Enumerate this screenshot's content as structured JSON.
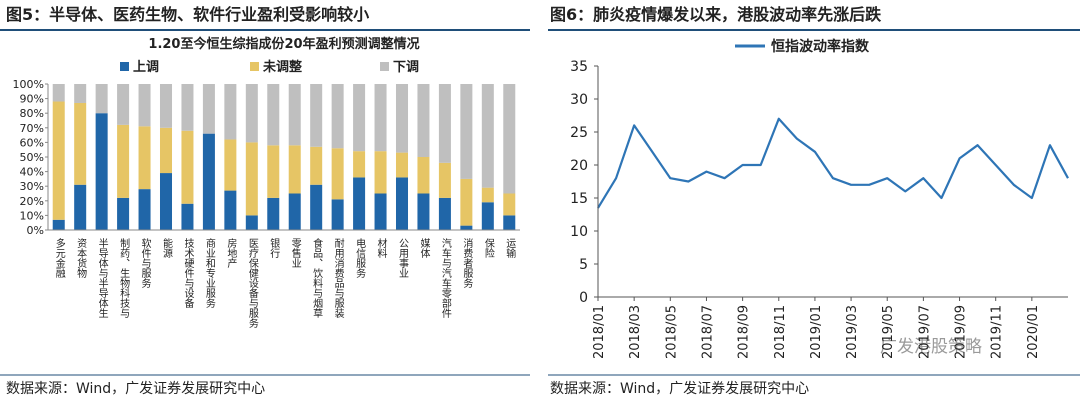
{
  "panels": [
    {
      "heading": "图5：半导体、医药生物、软件行业盈利受影响较小",
      "source": "数据来源：Wind，广发证券发展研究中心"
    },
    {
      "heading": "图6：肺炎疫情爆发以来，港股波动率先涨后跌",
      "source": "数据来源：Wind，广发证券发展研究中心"
    }
  ],
  "watermark": "广发港股策略",
  "chart_data": [
    {
      "type": "bar",
      "stacked": true,
      "title": "1.20至今恒生综指成份20年盈利预测调整情况",
      "categories": [
        "多元金融",
        "资本货物",
        "半导体与半导体生",
        "制药、生物科技与",
        "软件与服务",
        "能源",
        "技术硬件与设备",
        "商业和专业服务",
        "房地产",
        "医疗保健设备与服务",
        "银行",
        "零售业",
        "食品、饮料与烟草",
        "耐用消费品与服装",
        "电信服务",
        "材料",
        "公用事业",
        "媒体",
        "汽车与汽车零部件",
        "消费者服务",
        "保险",
        "运输"
      ],
      "series": [
        {
          "name": "上调",
          "color": "#2066a8",
          "values": [
            7,
            31,
            80,
            22,
            28,
            39,
            18,
            66,
            27,
            10,
            22,
            25,
            31,
            21,
            36,
            25,
            36,
            25,
            22,
            3,
            19,
            10
          ]
        },
        {
          "name": "未调整",
          "color": "#e6c565",
          "values": [
            81,
            56,
            0,
            50,
            43,
            31,
            50,
            0,
            35,
            50,
            36,
            33,
            26,
            35,
            18,
            29,
            17,
            25,
            24,
            32,
            10,
            15
          ]
        },
        {
          "name": "下调",
          "color": "#bfbfbf",
          "values": [
            12,
            13,
            20,
            28,
            29,
            30,
            32,
            34,
            38,
            40,
            42,
            42,
            43,
            44,
            46,
            46,
            47,
            50,
            54,
            65,
            71,
            75
          ]
        }
      ],
      "ylim": [
        0,
        100
      ],
      "yticks": [
        {
          "value": 0,
          "label": "0%"
        },
        {
          "value": 10,
          "label": "10%"
        },
        {
          "value": 20,
          "label": "20%"
        },
        {
          "value": 30,
          "label": "30%"
        },
        {
          "value": 40,
          "label": "40%"
        },
        {
          "value": 50,
          "label": "50%"
        },
        {
          "value": 60,
          "label": "60%"
        },
        {
          "value": 70,
          "label": "70%"
        },
        {
          "value": 80,
          "label": "80%"
        },
        {
          "value": 90,
          "label": "90%"
        },
        {
          "value": 100,
          "label": "100%"
        }
      ]
    },
    {
      "type": "line",
      "x": [
        "2018/01",
        null,
        "2018/03",
        null,
        "2018/05",
        null,
        "2018/07",
        null,
        "2018/09",
        null,
        "2018/11",
        null,
        "2019/01",
        null,
        "2019/03",
        null,
        "2019/05",
        null,
        "2019/07",
        null,
        "2019/09",
        null,
        "2019/11",
        null,
        "2020/01",
        null,
        null
      ],
      "series": [
        {
          "name": "恒指波动率指数",
          "color": "#2e75b6",
          "values": [
            13.5,
            18,
            26,
            22,
            18,
            17.5,
            19,
            18,
            20,
            20,
            27,
            24,
            22,
            18,
            17,
            17,
            18,
            16,
            18,
            15,
            21,
            23,
            20,
            17,
            15,
            23,
            18
          ]
        }
      ],
      "ylim": [
        0,
        35
      ],
      "yticks": [
        0,
        5,
        10,
        15,
        20,
        25,
        30,
        35
      ]
    }
  ]
}
